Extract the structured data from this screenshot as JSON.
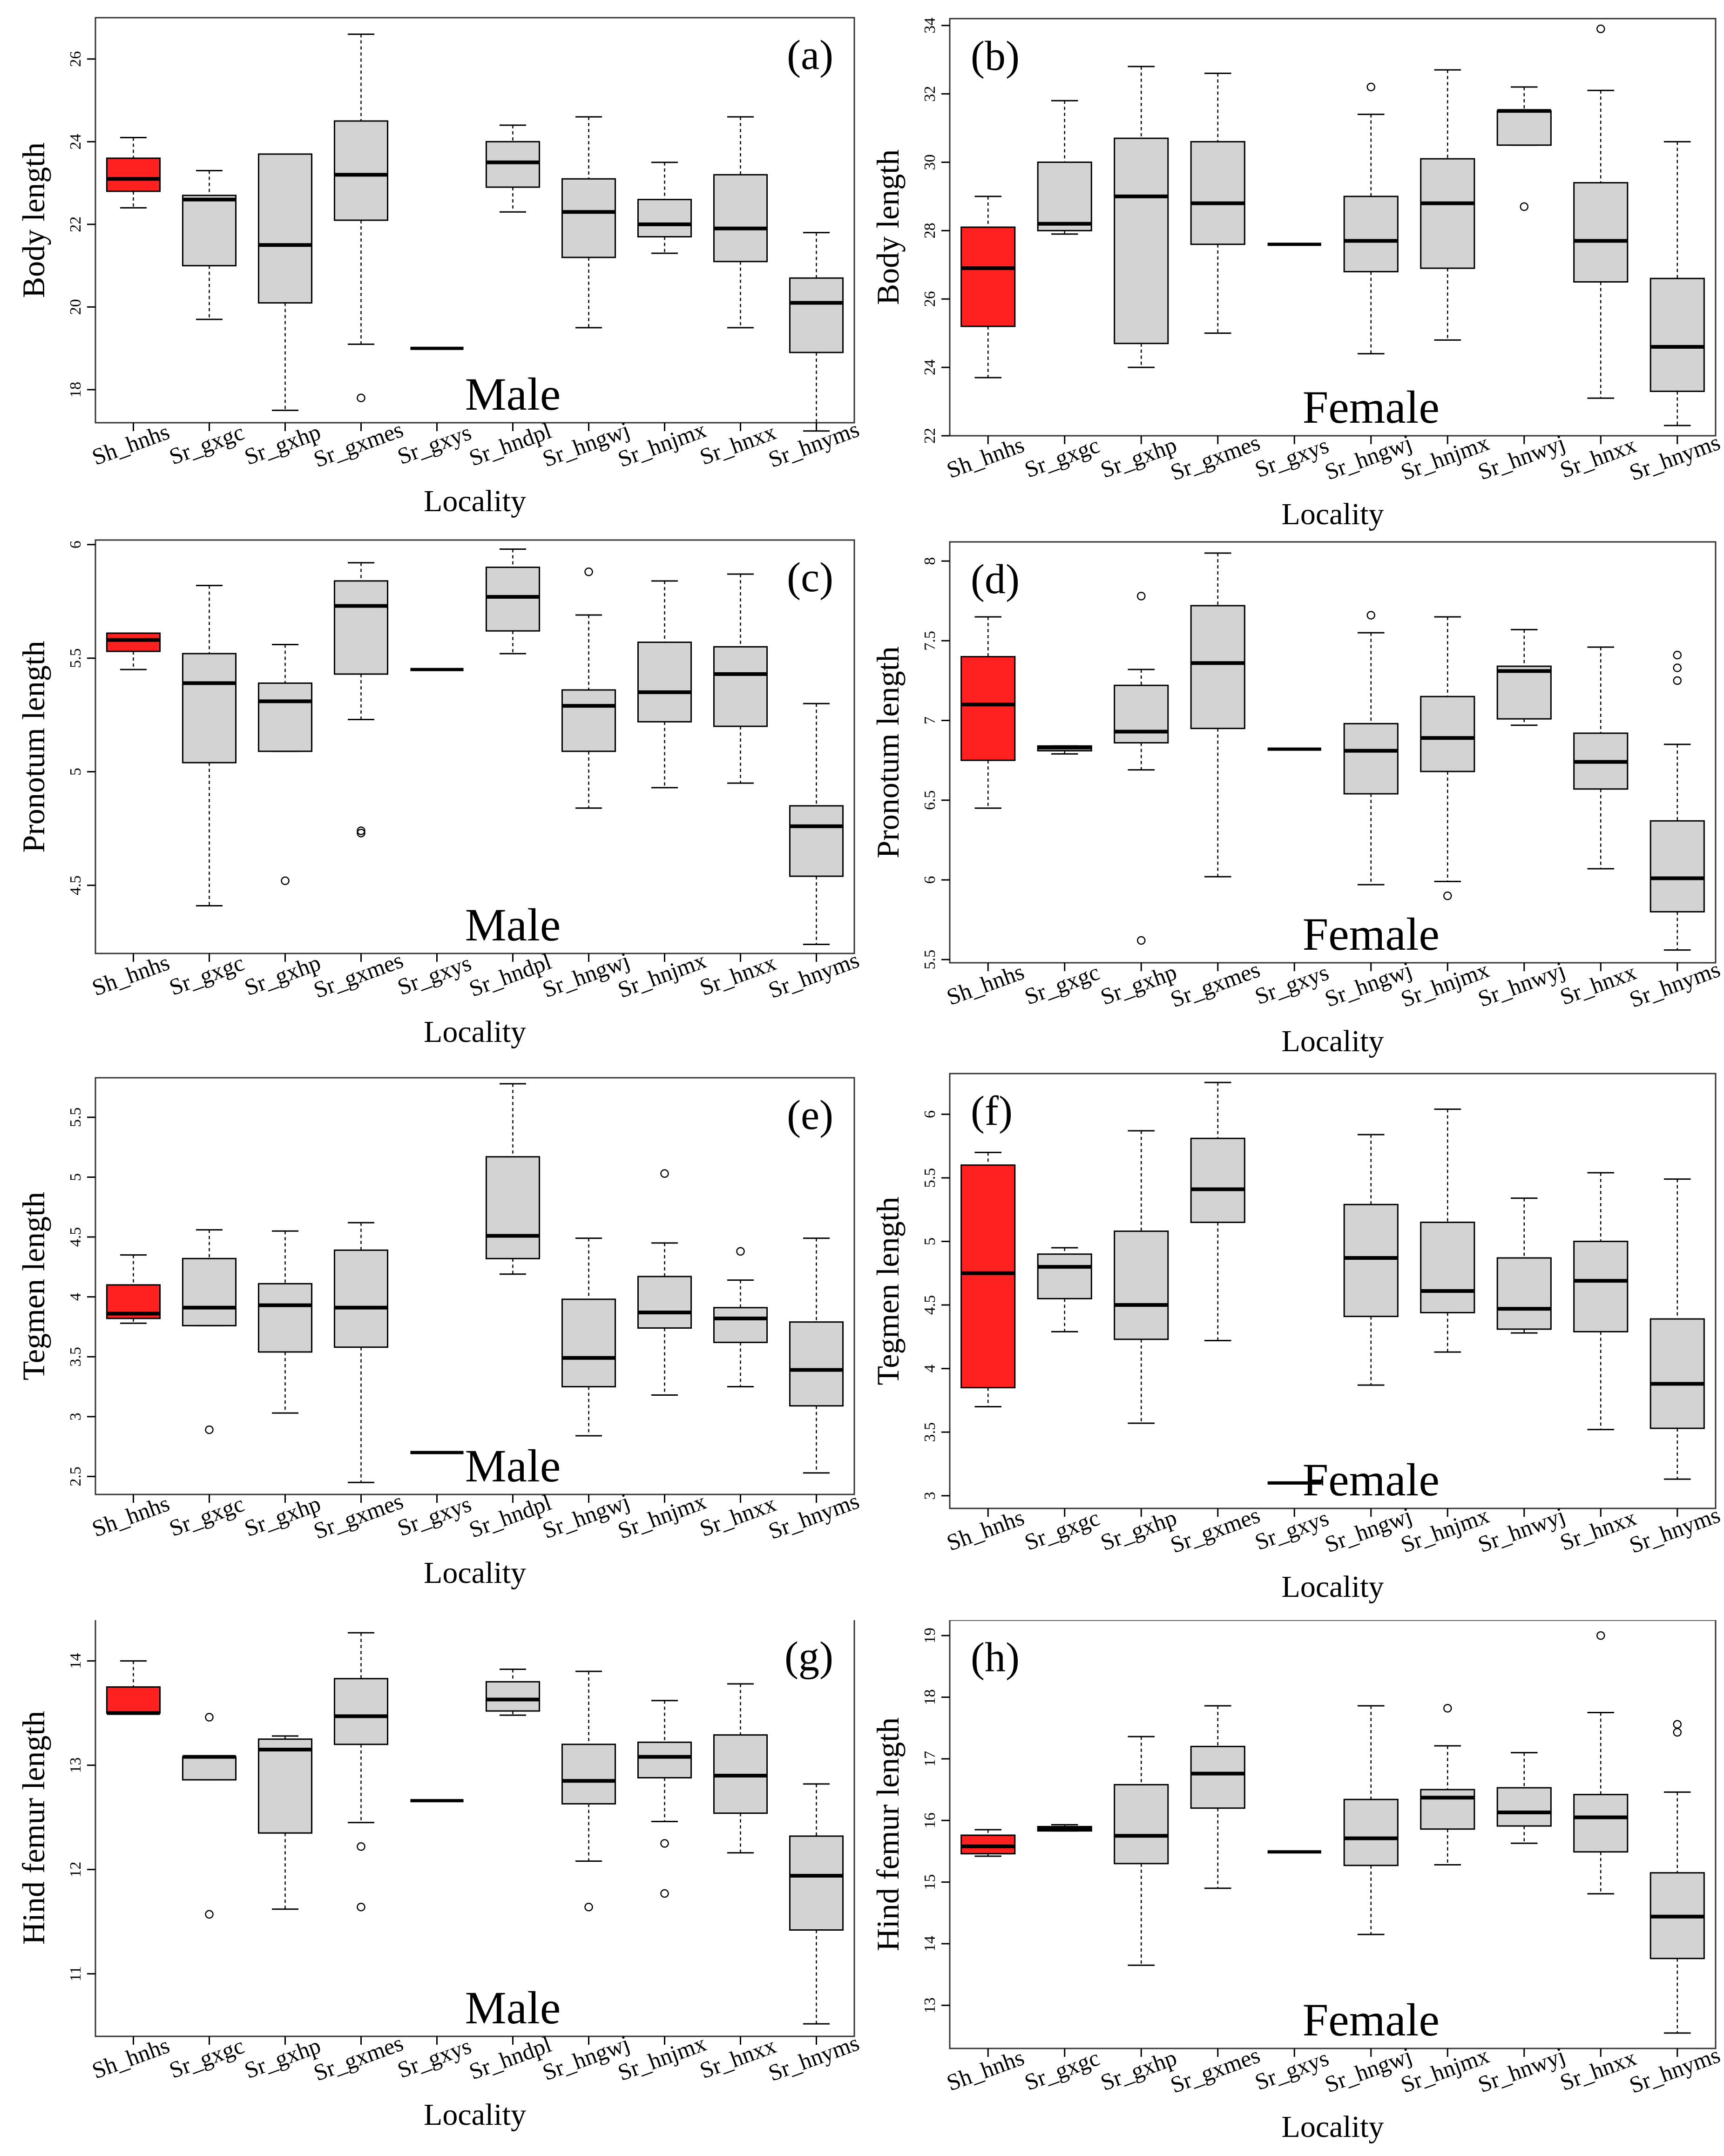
{
  "colors": {
    "highlight": "#ff2020",
    "box_fill": "#d3d3d3",
    "stroke": "#000000",
    "frame": "#333333"
  },
  "chart_data": [
    {
      "id": "a",
      "type": "boxplot",
      "panel_label": "(a)",
      "sex_label": "Male",
      "xlabel": "Locality",
      "ylabel": "Body length",
      "ylim": [
        17.2,
        27.0
      ],
      "yticks": [
        18,
        20,
        22,
        24,
        26
      ],
      "grid": false,
      "categories": [
        "Sh_hnhs",
        "Sr_gxgc",
        "Sr_gxhp",
        "Sr_gxmes",
        "Sr_gxys",
        "Sr_hndpl",
        "Sr_hngwj",
        "Sr_hnjmx",
        "Sr_hnxx",
        "Sr_hnyms"
      ],
      "highlight": [
        0
      ],
      "boxes": [
        {
          "min": 22.4,
          "q1": 22.8,
          "median": 23.1,
          "q3": 23.6,
          "max": 24.1,
          "outliers": []
        },
        {
          "min": 19.7,
          "q1": 21.0,
          "median": 22.6,
          "q3": 22.7,
          "max": 23.3,
          "outliers": []
        },
        {
          "min": 17.5,
          "q1": 20.1,
          "median": 21.5,
          "q3": 23.7,
          "max": 23.7,
          "outliers": []
        },
        {
          "min": 19.1,
          "q1": 22.1,
          "median": 23.2,
          "q3": 24.5,
          "max": 26.6,
          "outliers": [
            17.8
          ]
        },
        {
          "min": 19.0,
          "q1": 19.0,
          "median": 19.0,
          "q3": 19.0,
          "max": 19.0,
          "outliers": []
        },
        {
          "min": 22.3,
          "q1": 22.9,
          "median": 23.5,
          "q3": 24.0,
          "max": 24.4,
          "outliers": []
        },
        {
          "min": 19.5,
          "q1": 21.2,
          "median": 22.3,
          "q3": 23.1,
          "max": 24.6,
          "outliers": []
        },
        {
          "min": 21.3,
          "q1": 21.7,
          "median": 22.0,
          "q3": 22.6,
          "max": 23.5,
          "outliers": []
        },
        {
          "min": 19.5,
          "q1": 21.1,
          "median": 21.9,
          "q3": 23.2,
          "max": 24.6,
          "outliers": []
        },
        {
          "min": 17.0,
          "q1": 18.9,
          "median": 20.1,
          "q3": 20.7,
          "max": 21.8,
          "outliers": []
        }
      ]
    },
    {
      "id": "b",
      "type": "boxplot",
      "panel_label": "(b)",
      "sex_label": "Female",
      "xlabel": "Locality",
      "ylabel": "Body length",
      "ylim": [
        22.0,
        34.2
      ],
      "yticks": [
        22,
        24,
        26,
        28,
        30,
        32,
        34
      ],
      "grid": false,
      "categories": [
        "Sh_hnhs",
        "Sr_gxgc",
        "Sr_gxhp",
        "Sr_gxmes",
        "Sr_gxys",
        "Sr_hngwj",
        "Sr_hnjmx",
        "Sr_hnwyj",
        "Sr_hnxx",
        "Sr_hnyms"
      ],
      "highlight": [
        0
      ],
      "boxes": [
        {
          "min": 23.7,
          "q1": 25.2,
          "median": 26.9,
          "q3": 28.1,
          "max": 29.0,
          "outliers": []
        },
        {
          "min": 27.9,
          "q1": 28.0,
          "median": 28.2,
          "q3": 30.0,
          "max": 31.8,
          "outliers": []
        },
        {
          "min": 24.0,
          "q1": 24.7,
          "median": 29.0,
          "q3": 30.7,
          "max": 32.8,
          "outliers": []
        },
        {
          "min": 25.0,
          "q1": 27.6,
          "median": 28.8,
          "q3": 30.6,
          "max": 32.6,
          "outliers": []
        },
        {
          "min": 27.6,
          "q1": 27.6,
          "median": 27.6,
          "q3": 27.6,
          "max": 27.6,
          "outliers": []
        },
        {
          "min": 24.4,
          "q1": 26.8,
          "median": 27.7,
          "q3": 29.0,
          "max": 31.4,
          "outliers": [
            32.2
          ]
        },
        {
          "min": 24.8,
          "q1": 26.9,
          "median": 28.8,
          "q3": 30.1,
          "max": 32.7,
          "outliers": []
        },
        {
          "min": 30.5,
          "q1": 30.5,
          "median": 31.5,
          "q3": 31.5,
          "max": 32.2,
          "outliers": [
            28.7
          ]
        },
        {
          "min": 23.1,
          "q1": 26.5,
          "median": 27.7,
          "q3": 29.4,
          "max": 32.1,
          "outliers": [
            33.9
          ]
        },
        {
          "min": 22.3,
          "q1": 23.3,
          "median": 24.6,
          "q3": 26.6,
          "max": 30.6,
          "outliers": []
        }
      ]
    },
    {
      "id": "c",
      "type": "boxplot",
      "panel_label": "(c)",
      "sex_label": "Male",
      "xlabel": "Locality",
      "ylabel": "Pronotum length",
      "ylim": [
        4.2,
        6.02
      ],
      "yticks": [
        4.5,
        5.0,
        5.5,
        6.0
      ],
      "grid": false,
      "categories": [
        "Sh_hnhs",
        "Sr_gxgc",
        "Sr_gxhp",
        "Sr_gxmes",
        "Sr_gxys",
        "Sr_hndpl",
        "Sr_hngwj",
        "Sr_hnjmx",
        "Sr_hnxx",
        "Sr_hnyms"
      ],
      "highlight": [
        0
      ],
      "boxes": [
        {
          "min": 5.45,
          "q1": 5.53,
          "median": 5.58,
          "q3": 5.61,
          "max": 5.61,
          "outliers": []
        },
        {
          "min": 4.41,
          "q1": 5.04,
          "median": 5.39,
          "q3": 5.52,
          "max": 5.82,
          "outliers": []
        },
        {
          "min": 5.09,
          "q1": 5.09,
          "median": 5.31,
          "q3": 5.39,
          "max": 5.56,
          "outliers": [
            4.52
          ]
        },
        {
          "min": 5.23,
          "q1": 5.43,
          "median": 5.73,
          "q3": 5.84,
          "max": 5.92,
          "outliers": [
            4.73,
            4.74
          ]
        },
        {
          "min": 5.45,
          "q1": 5.45,
          "median": 5.45,
          "q3": 5.45,
          "max": 5.45,
          "outliers": []
        },
        {
          "min": 5.52,
          "q1": 5.62,
          "median": 5.77,
          "q3": 5.9,
          "max": 5.98,
          "outliers": []
        },
        {
          "min": 4.84,
          "q1": 5.09,
          "median": 5.29,
          "q3": 5.36,
          "max": 5.69,
          "outliers": [
            5.88
          ]
        },
        {
          "min": 4.93,
          "q1": 5.22,
          "median": 5.35,
          "q3": 5.57,
          "max": 5.84,
          "outliers": []
        },
        {
          "min": 4.95,
          "q1": 5.2,
          "median": 5.43,
          "q3": 5.55,
          "max": 5.87,
          "outliers": []
        },
        {
          "min": 4.24,
          "q1": 4.54,
          "median": 4.76,
          "q3": 4.85,
          "max": 5.3,
          "outliers": []
        }
      ]
    },
    {
      "id": "d",
      "type": "boxplot",
      "panel_label": "(d)",
      "sex_label": "Female",
      "xlabel": "Locality",
      "ylabel": "Pronotum length",
      "ylim": [
        5.48,
        8.12
      ],
      "yticks": [
        5.5,
        6.0,
        6.5,
        7.0,
        7.5,
        8.0
      ],
      "grid": false,
      "categories": [
        "Sh_hnhs",
        "Sr_gxgc",
        "Sr_gxhp",
        "Sr_gxmes",
        "Sr_gxys",
        "Sr_hngwj",
        "Sr_hnjmx",
        "Sr_hnwyj",
        "Sr_hnxx",
        "Sr_hnyms"
      ],
      "highlight": [
        0
      ],
      "boxes": [
        {
          "min": 6.45,
          "q1": 6.75,
          "median": 7.1,
          "q3": 7.4,
          "max": 7.65,
          "outliers": []
        },
        {
          "min": 6.79,
          "q1": 6.81,
          "median": 6.83,
          "q3": 6.84,
          "max": 6.84,
          "outliers": []
        },
        {
          "min": 6.69,
          "q1": 6.86,
          "median": 6.93,
          "q3": 7.22,
          "max": 7.32,
          "outliers": [
            7.78,
            5.62
          ]
        },
        {
          "min": 6.02,
          "q1": 6.95,
          "median": 7.36,
          "q3": 7.72,
          "max": 8.05,
          "outliers": []
        },
        {
          "min": 6.82,
          "q1": 6.82,
          "median": 6.82,
          "q3": 6.82,
          "max": 6.82,
          "outliers": []
        },
        {
          "min": 5.97,
          "q1": 6.54,
          "median": 6.81,
          "q3": 6.98,
          "max": 7.55,
          "outliers": [
            7.66
          ]
        },
        {
          "min": 5.99,
          "q1": 6.68,
          "median": 6.89,
          "q3": 7.15,
          "max": 7.65,
          "outliers": [
            5.9
          ]
        },
        {
          "min": 6.97,
          "q1": 7.01,
          "median": 7.31,
          "q3": 7.34,
          "max": 7.57,
          "outliers": []
        },
        {
          "min": 6.07,
          "q1": 6.57,
          "median": 6.74,
          "q3": 6.92,
          "max": 7.46,
          "outliers": []
        },
        {
          "min": 5.56,
          "q1": 5.8,
          "median": 6.01,
          "q3": 6.37,
          "max": 6.85,
          "outliers": [
            7.41,
            7.33,
            7.25
          ]
        }
      ]
    },
    {
      "id": "e",
      "type": "boxplot",
      "panel_label": "(e)",
      "sex_label": "Male",
      "xlabel": "Locality",
      "ylabel": "Tegmen length",
      "ylim": [
        2.35,
        5.83
      ],
      "yticks": [
        2.5,
        3.0,
        3.5,
        4.0,
        4.5,
        5.0,
        5.5
      ],
      "grid": false,
      "categories": [
        "Sh_hnhs",
        "Sr_gxgc",
        "Sr_gxhp",
        "Sr_gxmes",
        "Sr_gxys",
        "Sr_hndpl",
        "Sr_hngwj",
        "Sr_hnjmx",
        "Sr_hnxx",
        "Sr_hnyms"
      ],
      "highlight": [
        0
      ],
      "boxes": [
        {
          "min": 3.78,
          "q1": 3.82,
          "median": 3.86,
          "q3": 4.1,
          "max": 4.35,
          "outliers": []
        },
        {
          "min": 3.76,
          "q1": 3.76,
          "median": 3.91,
          "q3": 4.32,
          "max": 4.56,
          "outliers": [
            2.89
          ]
        },
        {
          "min": 3.03,
          "q1": 3.54,
          "median": 3.93,
          "q3": 4.11,
          "max": 4.55,
          "outliers": []
        },
        {
          "min": 2.45,
          "q1": 3.58,
          "median": 3.91,
          "q3": 4.39,
          "max": 4.62,
          "outliers": []
        },
        {
          "min": 2.7,
          "q1": 2.7,
          "median": 2.7,
          "q3": 2.7,
          "max": 2.7,
          "outliers": []
        },
        {
          "min": 4.19,
          "q1": 4.32,
          "median": 4.51,
          "q3": 5.17,
          "max": 5.78,
          "outliers": []
        },
        {
          "min": 2.84,
          "q1": 3.25,
          "median": 3.49,
          "q3": 3.98,
          "max": 4.49,
          "outliers": []
        },
        {
          "min": 3.18,
          "q1": 3.74,
          "median": 3.87,
          "q3": 4.17,
          "max": 4.45,
          "outliers": [
            5.03
          ]
        },
        {
          "min": 3.25,
          "q1": 3.62,
          "median": 3.82,
          "q3": 3.91,
          "max": 4.14,
          "outliers": [
            4.38
          ]
        },
        {
          "min": 2.53,
          "q1": 3.09,
          "median": 3.39,
          "q3": 3.79,
          "max": 4.49,
          "outliers": []
        }
      ]
    },
    {
      "id": "f",
      "type": "boxplot",
      "panel_label": "(f)",
      "sex_label": "Female",
      "xlabel": "Locality",
      "ylabel": "Tegmen length",
      "ylim": [
        2.9,
        6.32
      ],
      "yticks": [
        3.0,
        3.5,
        4.0,
        4.5,
        5.0,
        5.5,
        6.0
      ],
      "grid": false,
      "categories": [
        "Sh_hnhs",
        "Sr_gxgc",
        "Sr_gxhp",
        "Sr_gxmes",
        "Sr_gxys",
        "Sr_hngwj",
        "Sr_hnjmx",
        "Sr_hnwyj",
        "Sr_hnxx",
        "Sr_hnyms"
      ],
      "highlight": [
        0
      ],
      "boxes": [
        {
          "min": 3.7,
          "q1": 3.85,
          "median": 4.75,
          "q3": 5.6,
          "max": 5.7,
          "outliers": []
        },
        {
          "min": 4.29,
          "q1": 4.55,
          "median": 4.8,
          "q3": 4.9,
          "max": 4.95,
          "outliers": []
        },
        {
          "min": 3.57,
          "q1": 4.23,
          "median": 4.5,
          "q3": 5.08,
          "max": 5.87,
          "outliers": []
        },
        {
          "min": 4.22,
          "q1": 5.15,
          "median": 5.41,
          "q3": 5.81,
          "max": 6.25,
          "outliers": []
        },
        {
          "min": 3.1,
          "q1": 3.1,
          "median": 3.1,
          "q3": 3.1,
          "max": 3.1,
          "outliers": []
        },
        {
          "min": 3.87,
          "q1": 4.41,
          "median": 4.87,
          "q3": 5.29,
          "max": 5.84,
          "outliers": []
        },
        {
          "min": 4.13,
          "q1": 4.44,
          "median": 4.61,
          "q3": 5.15,
          "max": 6.04,
          "outliers": []
        },
        {
          "min": 4.28,
          "q1": 4.31,
          "median": 4.47,
          "q3": 4.87,
          "max": 5.34,
          "outliers": []
        },
        {
          "min": 3.52,
          "q1": 4.29,
          "median": 4.69,
          "q3": 5.0,
          "max": 5.54,
          "outliers": []
        },
        {
          "min": 3.13,
          "q1": 3.53,
          "median": 3.88,
          "q3": 4.39,
          "max": 5.49,
          "outliers": []
        }
      ]
    },
    {
      "id": "g",
      "type": "boxplot",
      "panel_label": "(g)",
      "sex_label": "Male",
      "xlabel": "Locality",
      "ylabel": "Hind femur length",
      "ylim": [
        10.4,
        14.4
      ],
      "yticks": [
        11,
        12,
        13,
        14
      ],
      "grid": false,
      "categories": [
        "Sh_hnhs",
        "Sr_gxgc",
        "Sr_gxhp",
        "Sr_gxmes",
        "Sr_gxys",
        "Sr_hndpl",
        "Sr_hngwj",
        "Sr_hnjmx",
        "Sr_hnxx",
        "Sr_hnyms"
      ],
      "highlight": [
        0
      ],
      "boxes": [
        {
          "min": 13.5,
          "q1": 13.5,
          "median": 13.5,
          "q3": 13.75,
          "max": 14.0,
          "outliers": []
        },
        {
          "min": 12.86,
          "q1": 12.86,
          "median": 13.08,
          "q3": 13.08,
          "max": 13.08,
          "outliers": [
            13.46,
            11.57
          ]
        },
        {
          "min": 11.62,
          "q1": 12.35,
          "median": 13.15,
          "q3": 13.25,
          "max": 13.28,
          "outliers": []
        },
        {
          "min": 12.45,
          "q1": 13.2,
          "median": 13.47,
          "q3": 13.83,
          "max": 14.27,
          "outliers": [
            12.22,
            11.64
          ]
        },
        {
          "min": 12.66,
          "q1": 12.66,
          "median": 12.66,
          "q3": 12.66,
          "max": 12.66,
          "outliers": []
        },
        {
          "min": 13.48,
          "q1": 13.52,
          "median": 13.63,
          "q3": 13.8,
          "max": 13.92,
          "outliers": []
        },
        {
          "min": 12.08,
          "q1": 12.63,
          "median": 12.85,
          "q3": 13.2,
          "max": 13.9,
          "outliers": [
            11.64
          ]
        },
        {
          "min": 12.46,
          "q1": 12.88,
          "median": 13.08,
          "q3": 13.22,
          "max": 13.62,
          "outliers": [
            12.25,
            11.77
          ]
        },
        {
          "min": 12.16,
          "q1": 12.54,
          "median": 12.9,
          "q3": 13.29,
          "max": 13.78,
          "outliers": []
        },
        {
          "min": 10.52,
          "q1": 11.42,
          "median": 11.94,
          "q3": 12.32,
          "max": 12.82,
          "outliers": []
        }
      ]
    },
    {
      "id": "h",
      "type": "boxplot",
      "panel_label": "(h)",
      "sex_label": "Female",
      "xlabel": "Locality",
      "ylabel": "Hind femur length",
      "ylim": [
        12.3,
        19.25
      ],
      "yticks": [
        13,
        14,
        15,
        16,
        17,
        18,
        19
      ],
      "grid": false,
      "categories": [
        "Sh_hnhs",
        "Sr_gxgc",
        "Sr_gxhp",
        "Sr_gxmes",
        "Sr_gxys",
        "Sr_hngwj",
        "Sr_hnjmx",
        "Sr_hnwyj",
        "Sr_hnxx",
        "Sr_hnyms"
      ],
      "highlight": [
        0
      ],
      "boxes": [
        {
          "min": 15.42,
          "q1": 15.46,
          "median": 15.58,
          "q3": 15.76,
          "max": 15.85,
          "outliers": []
        },
        {
          "min": 15.83,
          "q1": 15.83,
          "median": 15.86,
          "q3": 15.9,
          "max": 15.93,
          "outliers": []
        },
        {
          "min": 13.65,
          "q1": 15.3,
          "median": 15.75,
          "q3": 16.58,
          "max": 17.36,
          "outliers": []
        },
        {
          "min": 14.9,
          "q1": 16.2,
          "median": 16.76,
          "q3": 17.2,
          "max": 17.86,
          "outliers": []
        },
        {
          "min": 15.49,
          "q1": 15.49,
          "median": 15.49,
          "q3": 15.49,
          "max": 15.49,
          "outliers": []
        },
        {
          "min": 14.15,
          "q1": 15.27,
          "median": 15.71,
          "q3": 16.34,
          "max": 17.86,
          "outliers": []
        },
        {
          "min": 15.28,
          "q1": 15.86,
          "median": 16.37,
          "q3": 16.5,
          "max": 17.21,
          "outliers": [
            17.82
          ]
        },
        {
          "min": 15.63,
          "q1": 15.91,
          "median": 16.13,
          "q3": 16.53,
          "max": 17.1,
          "outliers": []
        },
        {
          "min": 14.81,
          "q1": 15.49,
          "median": 16.05,
          "q3": 16.42,
          "max": 17.75,
          "outliers": [
            19.0
          ]
        },
        {
          "min": 12.55,
          "q1": 13.76,
          "median": 14.44,
          "q3": 15.15,
          "max": 16.46,
          "outliers": [
            17.43,
            17.56
          ]
        }
      ]
    }
  ]
}
